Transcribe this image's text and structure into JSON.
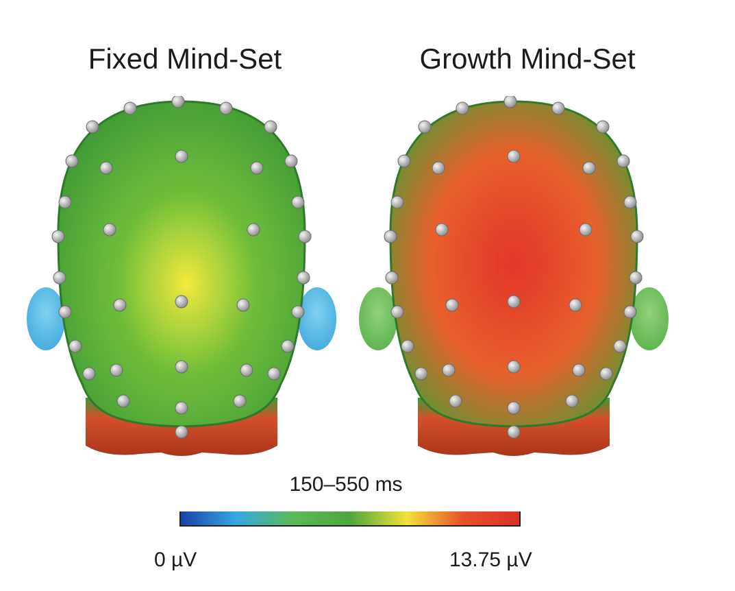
{
  "panels": [
    {
      "title": "Fixed Mind-Set",
      "core_color": "#f2ea3c",
      "mid_color": "#6fbe3a",
      "edge_color": "#3f9a36",
      "ear_color": "#3fa8dc",
      "neck_color": "#d5502a"
    },
    {
      "title": "Growth Mind-Set",
      "core_color": "#e2352a",
      "mid_color": "#e8602c",
      "edge_color": "#4e9d35",
      "ear_color": "#5ab04a",
      "neck_color": "#d5502a"
    }
  ],
  "colorbar": {
    "time_window": "150–550 ms",
    "min_label": "0 µV",
    "max_label": "13.75 µV",
    "stops": [
      "#1a3fa8",
      "#35a8e0",
      "#5cb85a",
      "#4ea63e",
      "#f2e23a",
      "#e8502a",
      "#d9302a"
    ]
  }
}
